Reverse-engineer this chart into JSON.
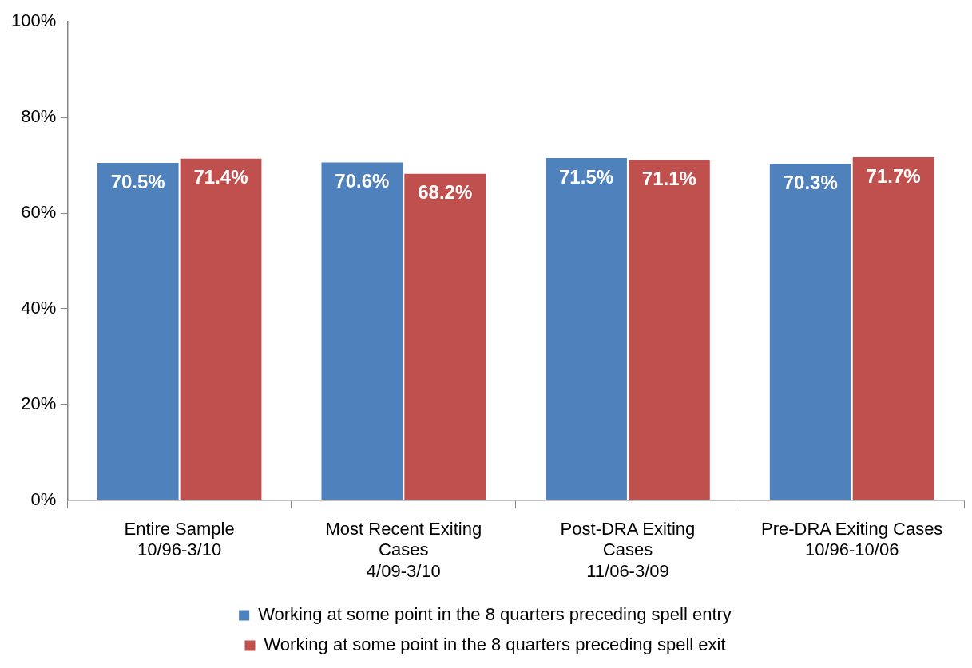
{
  "chart_data": {
    "type": "bar",
    "categories": [
      "Entire Sample\n10/96-3/10",
      "Most Recent Exiting\nCases\n4/09-3/10",
      "Post-DRA Exiting\nCases\n11/06-3/09",
      "Pre-DRA Exiting Cases\n10/96-10/06"
    ],
    "series": [
      {
        "name": "Working at some point in the 8 quarters preceding spell entry",
        "color": "#4f81bd",
        "values": [
          70.5,
          70.6,
          71.5,
          70.3
        ],
        "value_labels": [
          "70.5%",
          "70.6%",
          "71.5%",
          "70.3%"
        ]
      },
      {
        "name": "Working at some point in the 8 quarters preceding spell exit",
        "color": "#c0504d",
        "values": [
          71.4,
          68.2,
          71.1,
          71.7
        ],
        "value_labels": [
          "71.4%",
          "68.2%",
          "71.1%",
          "71.7%"
        ]
      }
    ],
    "ylim": [
      0,
      100
    ],
    "yticks": [
      {
        "value": 0,
        "label": "0%"
      },
      {
        "value": 20,
        "label": "20%"
      },
      {
        "value": 40,
        "label": "40%"
      },
      {
        "value": 60,
        "label": "60%"
      },
      {
        "value": 80,
        "label": "80%"
      },
      {
        "value": 100,
        "label": "100%"
      }
    ],
    "grid": false,
    "legend": "bottom"
  }
}
